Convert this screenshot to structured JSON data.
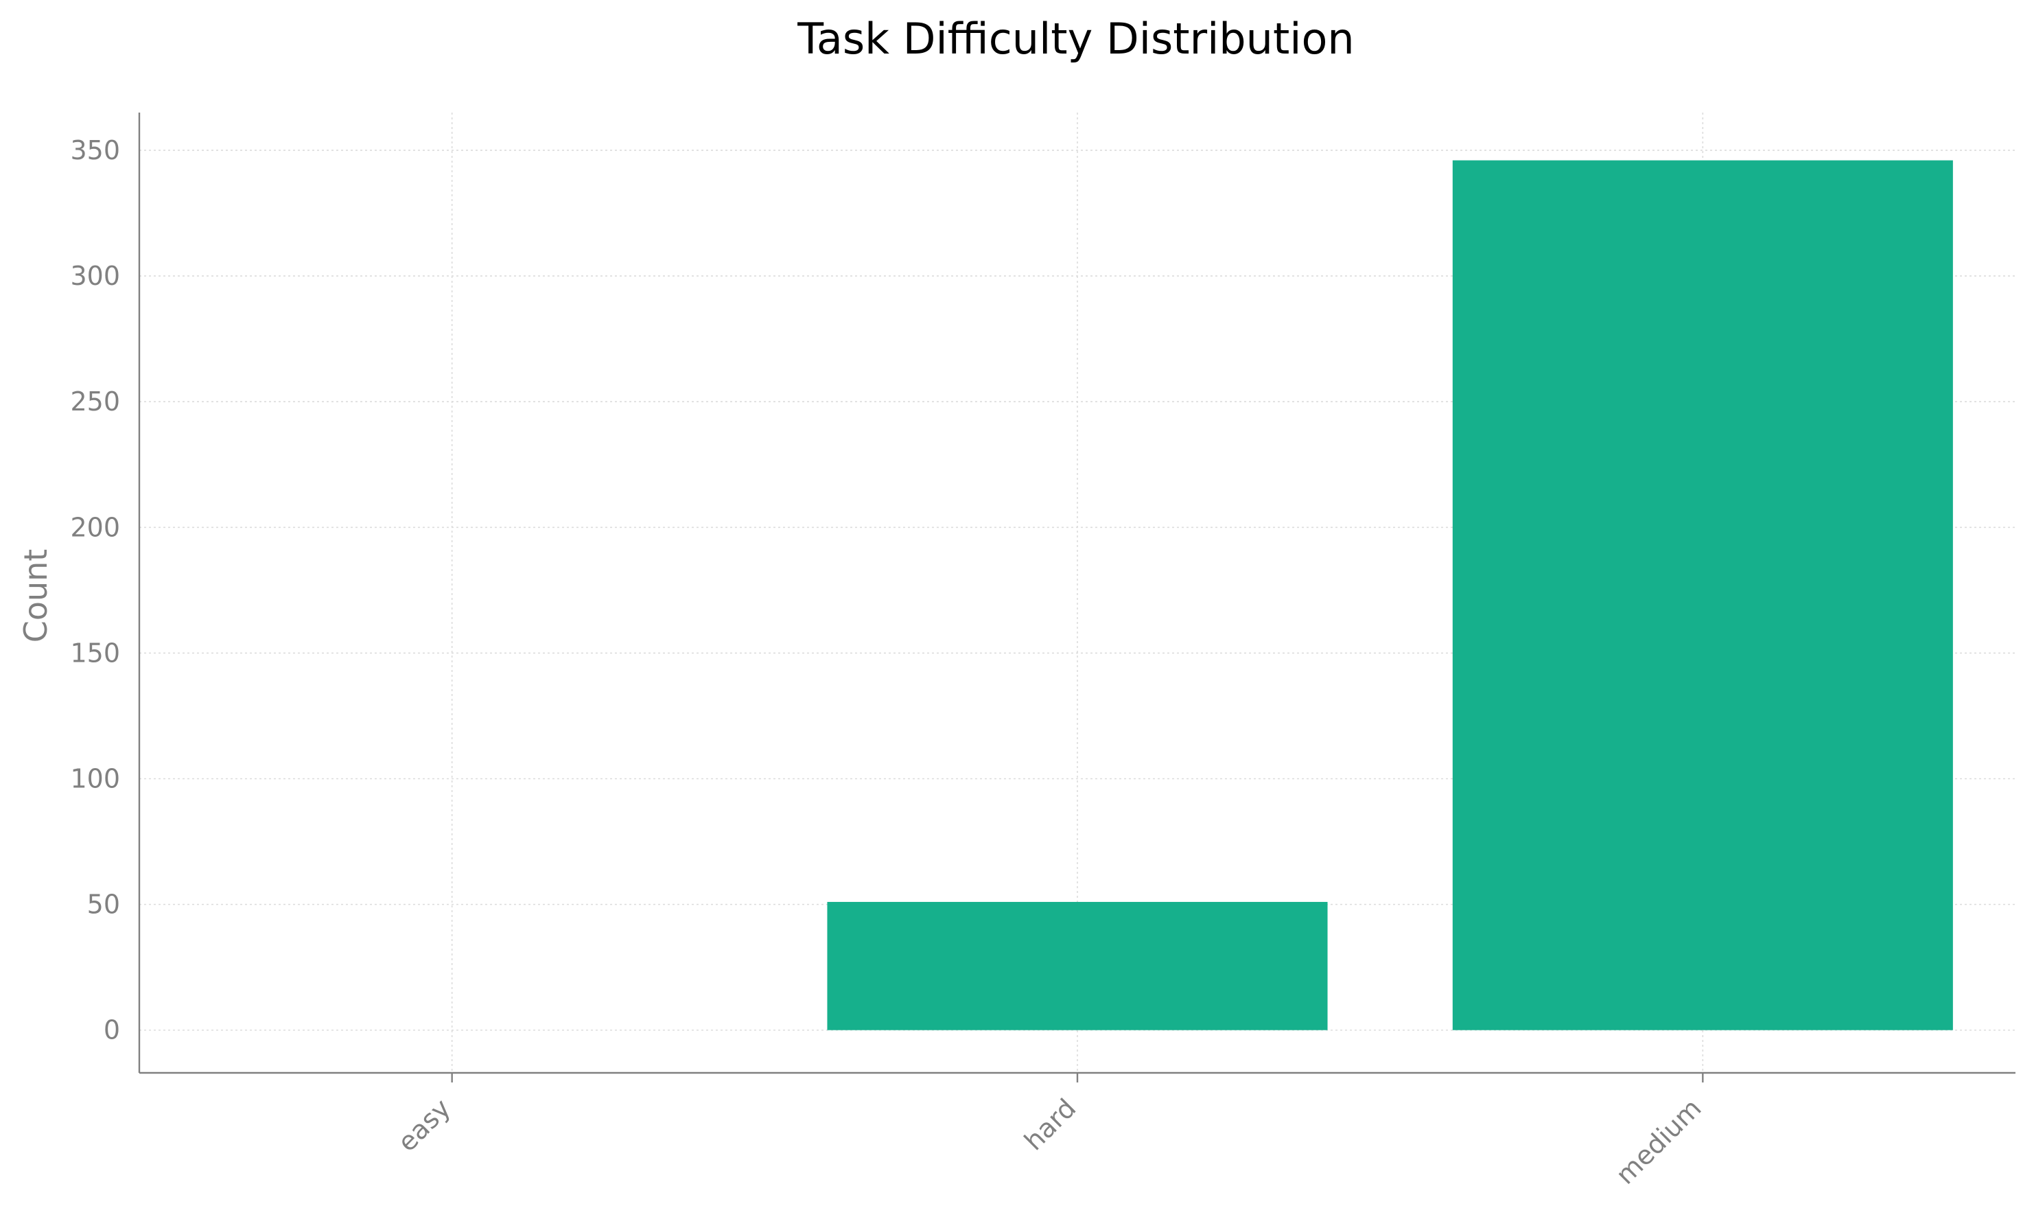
{
  "chart_data": {
    "type": "bar",
    "title": "Task Difficulty Distribution",
    "xlabel": "",
    "ylabel": "Count",
    "categories": [
      "easy",
      "hard",
      "medium"
    ],
    "values": [
      0,
      51,
      346
    ],
    "ylim": [
      -17,
      365
    ],
    "yticks": [
      0,
      50,
      100,
      150,
      200,
      250,
      300,
      350
    ],
    "grid": true,
    "bar_color": "#16b08c",
    "xtick_rotation": -45
  }
}
